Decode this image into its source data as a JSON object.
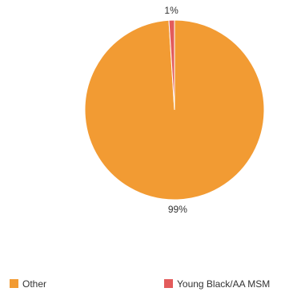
{
  "chart_data": {
    "type": "pie",
    "slices": [
      {
        "name": "Other",
        "value": 99,
        "label": "99%",
        "color": "#F29B33"
      },
      {
        "name": "Young Black/AA MSM",
        "value": 1,
        "label": "1%",
        "color": "#E35B5B"
      }
    ],
    "legend": {
      "position": "bottom",
      "items": [
        {
          "label": "Other",
          "color": "#F29B33"
        },
        {
          "label": "Young Black/AA MSM",
          "color": "#E35B5B"
        }
      ]
    }
  }
}
